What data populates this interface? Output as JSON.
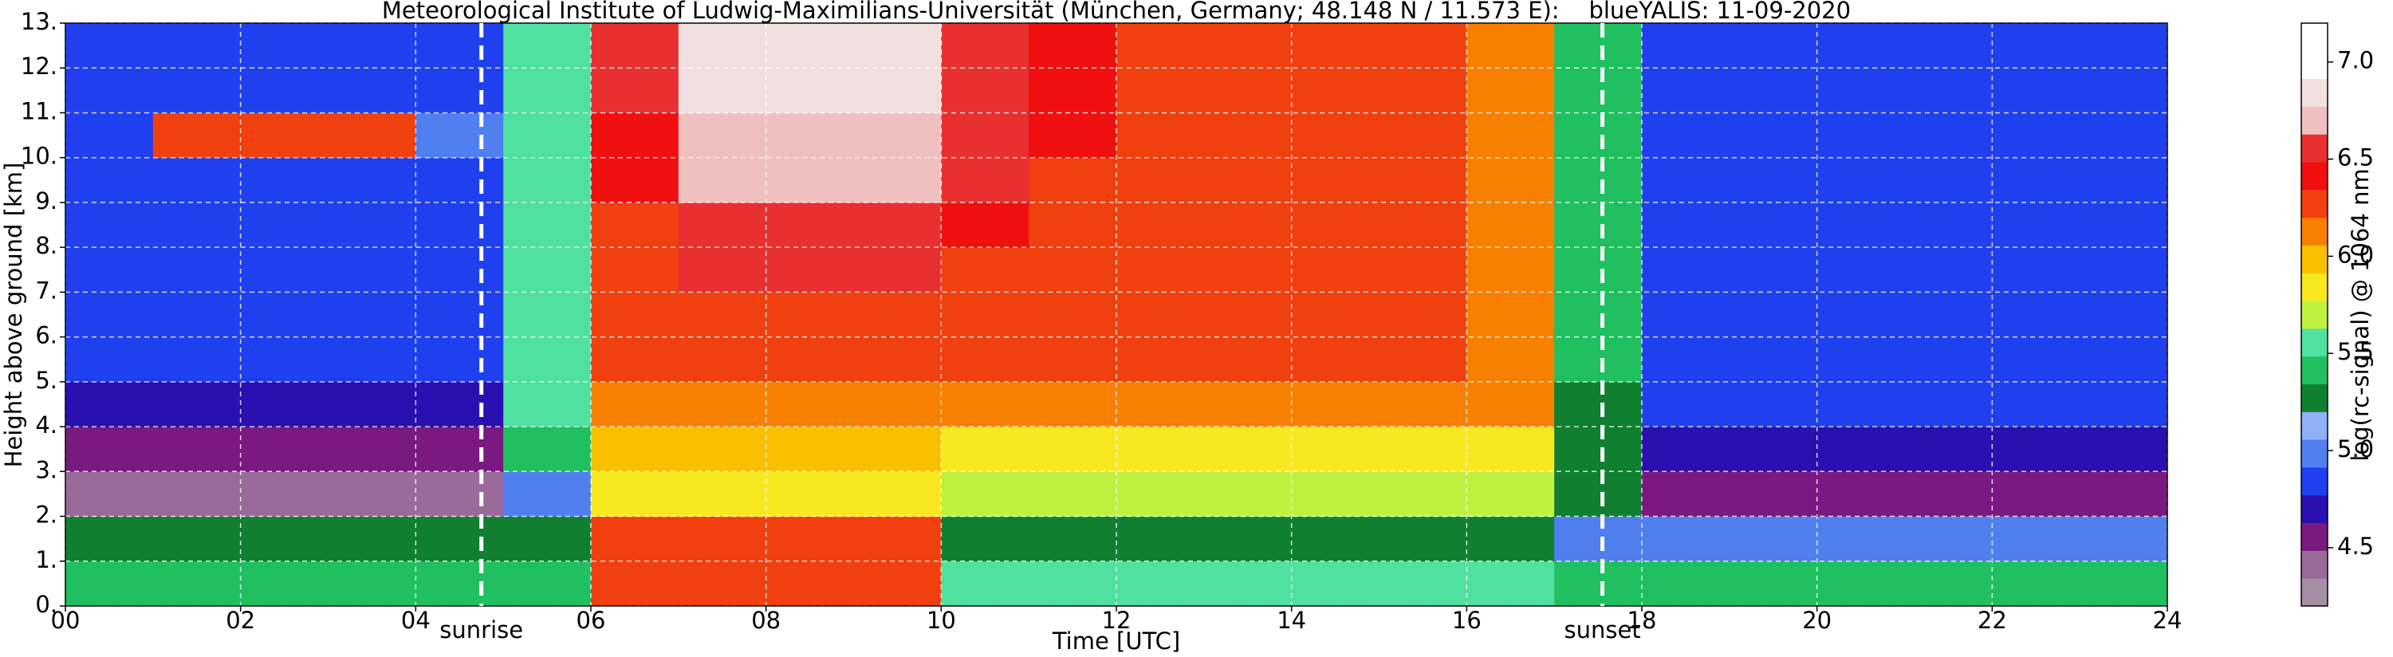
{
  "chart_data": {
    "type": "heatmap",
    "title": "Meteorological Institute of Ludwig-Maximilians-Universität (München, Germany; 48.148 N / 11.573 E):    blueYALIS: 11-09-2020",
    "x_label": "Time [UTC]",
    "y_label": "Height above ground [km]",
    "colorbar_label": "log(rc-signal) @ 1064 nm",
    "xbins": [
      0,
      1,
      2,
      3,
      4,
      5,
      6,
      7,
      8,
      9,
      10,
      11,
      12,
      13,
      14,
      15,
      16,
      17,
      18,
      19,
      20,
      21,
      22,
      23,
      24
    ],
    "ybins": [
      0,
      1,
      2,
      3,
      4,
      5,
      6,
      7,
      8,
      9,
      10,
      11,
      12,
      13
    ],
    "values": [
      [
        5.4,
        5.4,
        5.4,
        5.4,
        5.4,
        5.4,
        6.3,
        6.3,
        6.3,
        6.3,
        5.5,
        5.5,
        5.5,
        5.5,
        5.5,
        5.5,
        5.5,
        5.4,
        5.4,
        5.4,
        5.4,
        5.4,
        5.4,
        5.4
      ],
      [
        5.2,
        5.2,
        5.2,
        5.2,
        5.2,
        5.2,
        6.2,
        6.2,
        6.2,
        6.2,
        5.3,
        5.3,
        5.3,
        5.3,
        5.3,
        5.3,
        5.3,
        5.0,
        5.0,
        5.0,
        5.0,
        5.0,
        5.0,
        5.0
      ],
      [
        4.4,
        4.4,
        4.4,
        4.4,
        4.4,
        5.0,
        5.8,
        5.8,
        5.8,
        5.8,
        5.7,
        5.7,
        5.7,
        5.7,
        5.7,
        5.7,
        5.7,
        5.2,
        4.6,
        4.6,
        4.6,
        4.6,
        4.6,
        4.6
      ],
      [
        4.5,
        4.5,
        4.5,
        4.5,
        4.5,
        5.4,
        6.0,
        6.0,
        6.0,
        6.0,
        5.9,
        5.9,
        5.9,
        5.9,
        5.9,
        5.9,
        5.9,
        5.3,
        4.7,
        4.7,
        4.7,
        4.7,
        4.7,
        4.7
      ],
      [
        4.7,
        4.7,
        4.7,
        4.7,
        4.7,
        5.5,
        6.1,
        6.1,
        6.1,
        6.1,
        6.1,
        6.1,
        6.1,
        6.1,
        6.1,
        6.1,
        6.1,
        5.3,
        4.8,
        4.8,
        4.8,
        4.8,
        4.8,
        4.8
      ],
      [
        4.8,
        4.8,
        4.8,
        4.8,
        4.8,
        5.6,
        6.2,
        6.2,
        6.2,
        6.2,
        6.2,
        6.2,
        6.2,
        6.2,
        6.2,
        6.2,
        6.1,
        5.4,
        4.9,
        4.9,
        4.9,
        4.9,
        4.9,
        4.9
      ],
      [
        4.8,
        4.8,
        4.8,
        4.8,
        4.8,
        5.6,
        6.2,
        6.3,
        6.3,
        6.3,
        6.2,
        6.2,
        6.2,
        6.2,
        6.2,
        6.2,
        6.1,
        5.4,
        4.9,
        4.9,
        4.9,
        4.9,
        4.9,
        4.9
      ],
      [
        4.8,
        4.8,
        4.8,
        4.8,
        4.8,
        5.6,
        6.3,
        6.5,
        6.5,
        6.5,
        6.3,
        6.2,
        6.2,
        6.2,
        6.2,
        6.2,
        6.1,
        5.4,
        4.9,
        4.9,
        4.9,
        4.9,
        4.9,
        4.9
      ],
      [
        4.8,
        4.8,
        4.8,
        4.8,
        4.8,
        5.6,
        6.3,
        6.6,
        6.6,
        6.6,
        6.4,
        6.3,
        6.2,
        6.2,
        6.2,
        6.2,
        6.1,
        5.4,
        4.9,
        4.9,
        4.9,
        4.9,
        4.9,
        4.9
      ],
      [
        4.8,
        4.8,
        4.8,
        4.8,
        4.8,
        5.6,
        6.4,
        6.7,
        6.7,
        6.7,
        6.5,
        6.3,
        6.3,
        6.2,
        6.2,
        6.2,
        6.1,
        5.4,
        4.9,
        4.9,
        4.9,
        4.9,
        4.9,
        4.9
      ],
      [
        4.8,
        6.3,
        6.3,
        6.3,
        5.0,
        5.6,
        6.4,
        6.7,
        6.7,
        6.7,
        6.5,
        6.4,
        6.3,
        6.3,
        6.2,
        6.2,
        6.1,
        5.4,
        4.9,
        4.9,
        4.9,
        4.9,
        4.9,
        4.9
      ],
      [
        4.8,
        4.8,
        4.8,
        4.8,
        4.8,
        5.6,
        6.5,
        6.8,
        6.8,
        6.8,
        6.6,
        6.4,
        6.3,
        6.3,
        6.3,
        6.2,
        6.1,
        5.4,
        4.9,
        4.9,
        4.9,
        4.9,
        4.9,
        4.9
      ],
      [
        4.8,
        4.8,
        4.8,
        4.8,
        4.8,
        5.6,
        6.5,
        6.8,
        6.8,
        6.8,
        6.6,
        6.4,
        6.3,
        6.3,
        6.3,
        6.2,
        6.1,
        5.4,
        4.9,
        4.9,
        4.9,
        4.9,
        4.9,
        4.9
      ]
    ],
    "xlim": [
      0,
      24
    ],
    "ylim": [
      0,
      13
    ],
    "clim": [
      4.2,
      7.2
    ],
    "xticks": [
      {
        "value": 0,
        "label": "00"
      },
      {
        "value": 2,
        "label": "02"
      },
      {
        "value": 4,
        "label": "04"
      },
      {
        "value": 6,
        "label": "06"
      },
      {
        "value": 8,
        "label": "08"
      },
      10,
      12,
      14,
      16,
      18,
      20,
      22,
      24
    ],
    "yticks": [
      {
        "value": 0,
        "label": "0."
      },
      {
        "value": 1,
        "label": "1."
      },
      {
        "value": 2,
        "label": "2."
      },
      {
        "value": 3,
        "label": "3."
      },
      {
        "value": 4,
        "label": "4."
      },
      {
        "value": 5,
        "label": "5."
      },
      {
        "value": 6,
        "label": "6."
      },
      {
        "value": 7,
        "label": "7."
      },
      {
        "value": 8,
        "label": "8."
      },
      {
        "value": 9,
        "label": "9."
      },
      {
        "value": 10,
        "label": "10."
      },
      {
        "value": 11,
        "label": "11."
      },
      {
        "value": 12,
        "label": "12."
      },
      {
        "value": 13,
        "label": "13."
      }
    ],
    "cticks": [
      4.5,
      {
        "value": 5,
        "label": "5.0"
      },
      5.5,
      {
        "value": 6,
        "label": "6.0"
      },
      6.5,
      {
        "value": 7,
        "label": "7.0"
      }
    ],
    "colorscale": [
      "#a58fa5",
      "#9a6a9a",
      "#7a1a80",
      "#2a10b0",
      "#2040f0",
      "#5080f0",
      "#90b0f8",
      "#108030",
      "#20c060",
      "#50e0a0",
      "#c0f040",
      "#f8e820",
      "#f8c000",
      "#f88000",
      "#f04010",
      "#f01010",
      "#e83030",
      "#f0c0c0",
      "#f0e0e0",
      "#ffffff",
      "#ffffff"
    ],
    "grid": true,
    "annotations": [
      {
        "text": "sunrise",
        "x": 4.75
      },
      {
        "text": "sunset",
        "x": 17.55
      }
    ]
  }
}
